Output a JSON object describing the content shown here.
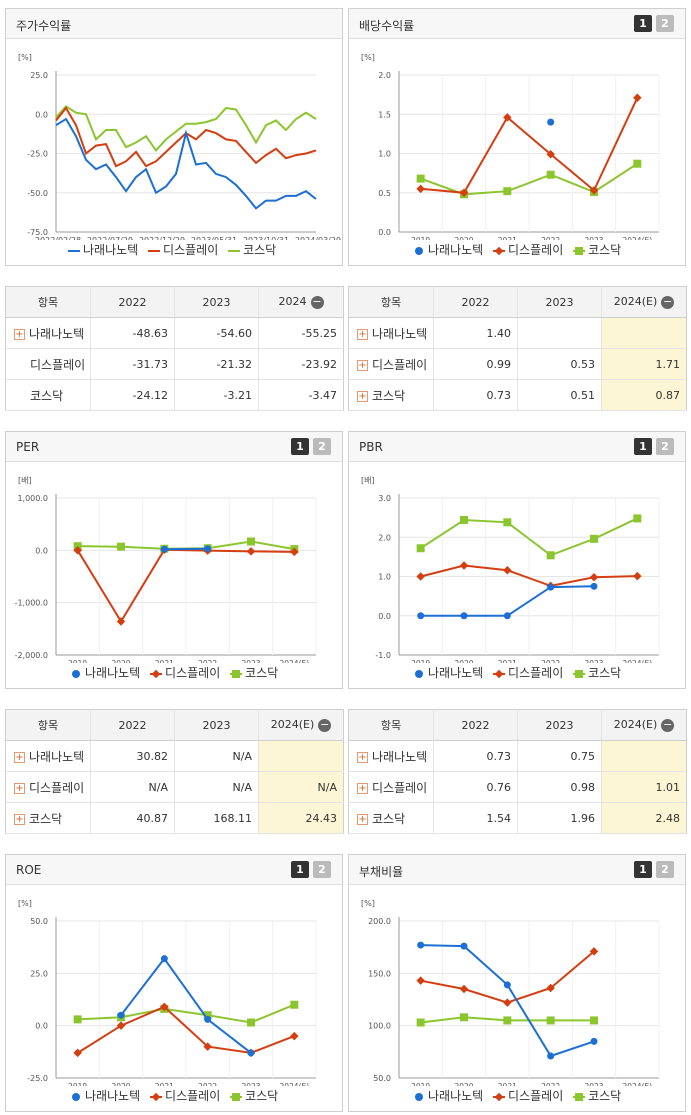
{
  "colors": {
    "nara": "#1c6fd4",
    "display": "#d43e11",
    "kosdaq": "#8bc62e"
  },
  "legend": {
    "nara": "나래나노텍",
    "display": "디스플레이",
    "kosdaq": "코스닥"
  },
  "pager": {
    "one": "1",
    "two": "2"
  },
  "panels": {
    "stock": {
      "title": "주가수익률",
      "unit": "[%]"
    },
    "div": {
      "title": "배당수익률",
      "unit": "[%]"
    },
    "per": {
      "title": "PER",
      "unit": "[배]"
    },
    "pbr": {
      "title": "PBR",
      "unit": "[배]"
    },
    "roe": {
      "title": "ROE",
      "unit": "[%]"
    },
    "debt": {
      "title": "부채비율",
      "unit": "[%]"
    }
  },
  "tables": {
    "stock": {
      "headers": [
        "항목",
        "2022",
        "2023",
        "2024"
      ],
      "rows": [
        {
          "name": "나래나노텍",
          "v": [
            "-48.63",
            "-54.60",
            "-55.25"
          ]
        },
        {
          "name": "디스플레이",
          "v": [
            "-31.73",
            "-21.32",
            "-23.92"
          ]
        },
        {
          "name": "코스닥",
          "v": [
            "-24.12",
            "-3.21",
            "-3.47"
          ]
        }
      ]
    },
    "div": {
      "headers": [
        "항목",
        "2022",
        "2023",
        "2024(E)"
      ],
      "rows": [
        {
          "name": "나래나노텍",
          "v": [
            "1.40",
            "",
            ""
          ]
        },
        {
          "name": "디스플레이",
          "v": [
            "0.99",
            "0.53",
            "1.71"
          ]
        },
        {
          "name": "코스닥",
          "v": [
            "0.73",
            "0.51",
            "0.87"
          ]
        }
      ]
    },
    "per": {
      "headers": [
        "항목",
        "2022",
        "2023",
        "2024(E)"
      ],
      "rows": [
        {
          "name": "나래나노텍",
          "v": [
            "30.82",
            "N/A",
            ""
          ]
        },
        {
          "name": "디스플레이",
          "v": [
            "N/A",
            "N/A",
            "N/A"
          ]
        },
        {
          "name": "코스닥",
          "v": [
            "40.87",
            "168.11",
            "24.43"
          ]
        }
      ]
    },
    "pbr": {
      "headers": [
        "항목",
        "2022",
        "2023",
        "2024(E)"
      ],
      "rows": [
        {
          "name": "나래나노텍",
          "v": [
            "0.73",
            "0.75",
            ""
          ]
        },
        {
          "name": "디스플레이",
          "v": [
            "0.76",
            "0.98",
            "1.01"
          ]
        },
        {
          "name": "코스닥",
          "v": [
            "1.54",
            "1.96",
            "2.48"
          ]
        }
      ]
    }
  },
  "chart_data": [
    {
      "id": "stock",
      "type": "line",
      "title": "주가수익률",
      "ylabel": "[%]",
      "ylim": [
        -75,
        25
      ],
      "yticks": [
        25,
        0,
        -25,
        -50,
        -75
      ],
      "ytick_labels": [
        "25.0",
        "0.0",
        "-25.0",
        "-50.0",
        "-75.0"
      ],
      "xlabels": [
        "2022/02/28",
        "2022/07/29",
        "2022/12/29",
        "2023/05/31",
        "2023/10/31",
        "2024/03/29"
      ],
      "series": [
        {
          "name": "나래나노텍",
          "key": "nara",
          "values": [
            -7,
            -3,
            -14,
            -29,
            -35,
            -32,
            -40,
            -49,
            -40,
            -35,
            -50,
            -46,
            -38,
            -12,
            -32,
            -31,
            -38,
            -40,
            -45,
            -52,
            -60,
            -55,
            -55,
            -52,
            -52,
            -49,
            -54
          ]
        },
        {
          "name": "디스플레이",
          "key": "display",
          "values": [
            -4,
            4,
            -7,
            -25,
            -20,
            -19,
            -33,
            -30,
            -24,
            -33,
            -30,
            -24,
            -18,
            -12,
            -16,
            -10,
            -12,
            -16,
            -17,
            -24,
            -31,
            -26,
            -22,
            -28,
            -26,
            -25,
            -23
          ]
        },
        {
          "name": "코스닥",
          "key": "kosdaq",
          "values": [
            -2,
            5,
            1,
            0,
            -16,
            -10,
            -10,
            -21,
            -18,
            -14,
            -23,
            -16,
            -11,
            -6,
            -6,
            -5,
            -3,
            4,
            3,
            -7,
            -18,
            -7,
            -4,
            -10,
            -3,
            1,
            -3
          ]
        }
      ]
    },
    {
      "id": "div",
      "type": "line",
      "title": "배당수익률",
      "ylabel": "[%]",
      "ylim": [
        0,
        2
      ],
      "yticks": [
        2,
        1.5,
        1,
        0.5,
        0
      ],
      "ytick_labels": [
        "2.0",
        "1.5",
        "1.0",
        "0.5",
        "0.0"
      ],
      "categories": [
        "2019",
        "2020",
        "2021",
        "2022",
        "2023",
        "2024(E)"
      ],
      "series": [
        {
          "name": "나래나노텍",
          "key": "nara",
          "values": [
            null,
            null,
            null,
            1.4,
            null,
            null
          ]
        },
        {
          "name": "디스플레이",
          "key": "display",
          "values": [
            0.55,
            0.5,
            1.46,
            0.99,
            0.53,
            1.71
          ]
        },
        {
          "name": "코스닥",
          "key": "kosdaq",
          "values": [
            0.68,
            0.48,
            0.52,
            0.73,
            0.51,
            0.87
          ]
        }
      ]
    },
    {
      "id": "per",
      "type": "line",
      "title": "PER",
      "ylabel": "[배]",
      "ylim": [
        -2000,
        1000
      ],
      "yticks": [
        1000,
        0,
        -1000,
        -2000
      ],
      "ytick_labels": [
        "1,000.0",
        "0.0",
        "-1,000.0",
        "-2,000.0"
      ],
      "categories": [
        "2019",
        "2020",
        "2021",
        "2022",
        "2023",
        "2024(E)"
      ],
      "series": [
        {
          "name": "나래나노텍",
          "key": "nara",
          "values": [
            null,
            null,
            20,
            30.82,
            null,
            null
          ]
        },
        {
          "name": "디스플레이",
          "key": "display",
          "values": [
            0,
            -1360,
            10,
            -5,
            -20,
            -30
          ]
        },
        {
          "name": "코스닥",
          "key": "kosdaq",
          "values": [
            80,
            70,
            30,
            40.87,
            168.11,
            24.43
          ]
        }
      ]
    },
    {
      "id": "pbr",
      "type": "line",
      "title": "PBR",
      "ylabel": "[배]",
      "ylim": [
        -1,
        3
      ],
      "yticks": [
        3,
        2,
        1,
        0,
        -1
      ],
      "ytick_labels": [
        "3.0",
        "2.0",
        "1.0",
        "0.0",
        "-1.0"
      ],
      "categories": [
        "2019",
        "2020",
        "2021",
        "2022",
        "2023",
        "2024(E)"
      ],
      "series": [
        {
          "name": "나래나노텍",
          "key": "nara",
          "values": [
            0,
            0,
            0,
            0.73,
            0.75,
            null
          ]
        },
        {
          "name": "디스플레이",
          "key": "display",
          "values": [
            1.0,
            1.28,
            1.16,
            0.76,
            0.98,
            1.01
          ]
        },
        {
          "name": "코스닥",
          "key": "kosdaq",
          "values": [
            1.72,
            2.44,
            2.38,
            1.54,
            1.96,
            2.48
          ]
        }
      ]
    },
    {
      "id": "roe",
      "type": "line",
      "title": "ROE",
      "ylabel": "[%]",
      "ylim": [
        -25,
        50
      ],
      "yticks": [
        50,
        25,
        0,
        -25
      ],
      "ytick_labels": [
        "50.0",
        "25.0",
        "0.0",
        "-25.0"
      ],
      "categories": [
        "2019",
        "2020",
        "2021",
        "2022",
        "2023",
        "2024(E)"
      ],
      "series": [
        {
          "name": "나래나노텍",
          "key": "nara",
          "values": [
            null,
            5,
            32,
            3,
            -13,
            null
          ]
        },
        {
          "name": "디스플레이",
          "key": "display",
          "values": [
            -13,
            0,
            9,
            -10,
            -13,
            -5
          ]
        },
        {
          "name": "코스닥",
          "key": "kosdaq",
          "values": [
            3,
            4,
            8,
            5,
            1.5,
            10
          ]
        }
      ]
    },
    {
      "id": "debt",
      "type": "line",
      "title": "부채비율",
      "ylabel": "[%]",
      "ylim": [
        50,
        200
      ],
      "yticks": [
        200,
        150,
        100,
        50
      ],
      "ytick_labels": [
        "200.0",
        "150.0",
        "100.0",
        "50.0"
      ],
      "categories": [
        "2019",
        "2020",
        "2021",
        "2022",
        "2023",
        "2024(E)"
      ],
      "series": [
        {
          "name": "나래나노텍",
          "key": "nara",
          "values": [
            177,
            176,
            139,
            71,
            85,
            null
          ]
        },
        {
          "name": "디스플레이",
          "key": "display",
          "values": [
            143,
            135,
            122,
            136,
            171,
            null
          ]
        },
        {
          "name": "코스닥",
          "key": "kosdaq",
          "values": [
            103,
            108,
            105,
            105,
            105,
            null
          ]
        }
      ]
    }
  ]
}
